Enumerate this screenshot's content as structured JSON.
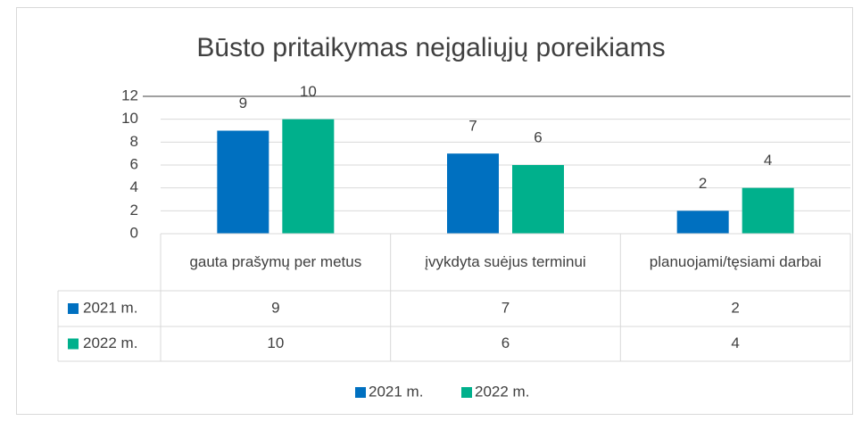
{
  "chart_data": {
    "type": "bar",
    "title": "Būsto pritaikymas neįgaliųjų poreikiams",
    "categories": [
      "gauta prašymų per metus",
      "įvykdyta suėjus terminui",
      "planuojami/tęsiami darbai"
    ],
    "series": [
      {
        "name": "2021 m.",
        "color": "#0070c0",
        "values": [
          9,
          7,
          2
        ]
      },
      {
        "name": "2022 m.",
        "color": "#00b08c",
        "values": [
          10,
          6,
          4
        ]
      }
    ],
    "ylim": [
      0,
      12
    ],
    "yticks": [
      0,
      2,
      4,
      6,
      8,
      10,
      12
    ],
    "grid": true,
    "legend": "bottom",
    "data_table": true
  }
}
